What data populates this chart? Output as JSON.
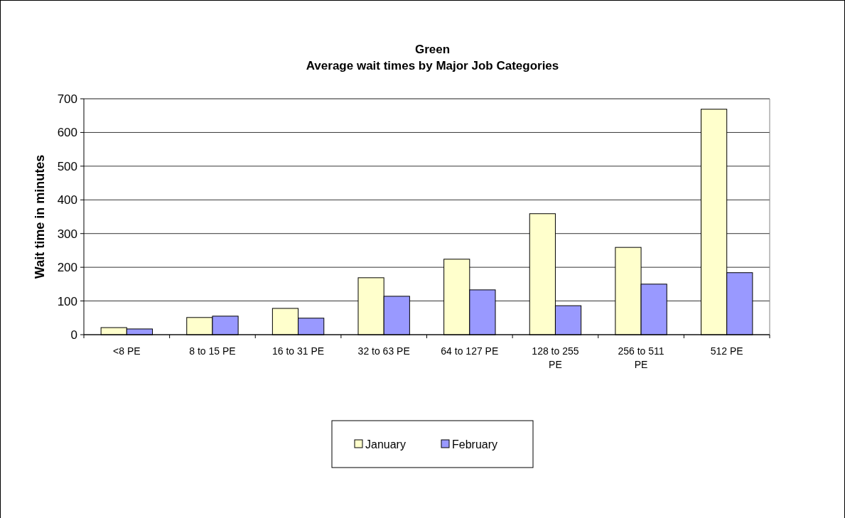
{
  "chart_data": {
    "type": "bar",
    "title": "Green",
    "subtitle": "Average wait times by Major Job Categories",
    "ylabel": "Wait time in minutes",
    "categories": [
      "<8 PE",
      "8 to 15 PE",
      "16 to 31 PE",
      "32 to 63 PE",
      "64 to 127 PE",
      "128 to 255 PE",
      "256 to 511 PE",
      "512 PE"
    ],
    "series": [
      {
        "name": "January",
        "color": "#ffffcc",
        "values": [
          21,
          51,
          78,
          169,
          224,
          359,
          259,
          669
        ]
      },
      {
        "name": "February",
        "color": "#9999ff",
        "values": [
          17,
          55,
          49,
          114,
          133,
          86,
          150,
          184
        ]
      }
    ],
    "ylim": [
      0,
      700
    ],
    "yticks": [
      0,
      100,
      200,
      300,
      400,
      500,
      600,
      700
    ],
    "grid": "y",
    "legend": "bottom"
  }
}
